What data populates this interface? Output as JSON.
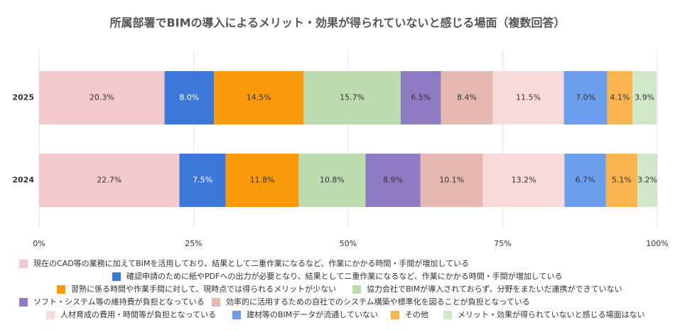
{
  "chart_data": {
    "type": "stacked-bar-horizontal",
    "title": "所属部署でBIMの導入によるメリット・効果が得られていないと感じる場面（複数回答）",
    "categories": [
      "2025",
      "2024"
    ],
    "xlim": [
      0,
      100
    ],
    "xticks": [
      {
        "value": 0,
        "label": "0%"
      },
      {
        "value": 25,
        "label": "25%"
      },
      {
        "value": 50,
        "label": "50%"
      },
      {
        "value": 75,
        "label": "75%"
      },
      {
        "value": 100,
        "label": "100%"
      }
    ],
    "grid": true,
    "series": [
      {
        "name": "現在のCAD等の業務に加えてBIMを活用しており、結果として二重作業になるなど、作業にかかる時間・手間が増加している",
        "color": "#f2c9cc",
        "values": [
          20.3,
          22.7
        ],
        "value_labels": [
          "20.3%",
          "22.7%"
        ]
      },
      {
        "name": "確認申請のために紙やPDFへの出力が必要となり、結果として二重作業になるなど、作業にかかる時間・手間が増加している",
        "color": "#3b78d8",
        "values": [
          8.0,
          7.5
        ],
        "value_labels": [
          "8.0%",
          "7.5%"
        ]
      },
      {
        "name": "習熟に係る時間や作業手間に対して、現時点では得られるメリットが少ない",
        "color": "#f89a0c",
        "values": [
          14.5,
          11.8
        ],
        "value_labels": [
          "14.5%",
          "11.8%"
        ]
      },
      {
        "name": "協力会社でBIMが導入されておらず、分野をまたいだ連携ができていない",
        "color": "#bcdcb0",
        "values": [
          15.7,
          10.8
        ],
        "value_labels": [
          "15.7%",
          "10.8%"
        ]
      },
      {
        "name": "ソフト・システム等の維持費が負担となっている",
        "color": "#8e7cc3",
        "values": [
          6.5,
          8.9
        ],
        "value_labels": [
          "6.5%",
          "8.9%"
        ]
      },
      {
        "name": "効率的に活用するための自社でのシステム構築や標準化を図ることが負担となっている",
        "color": "#e6b8b2",
        "values": [
          8.4,
          10.1
        ],
        "value_labels": [
          "8.4%",
          "10.1%"
        ]
      },
      {
        "name": "人材育成の費用・時間等が負担となっている",
        "color": "#f8dadb",
        "values": [
          11.5,
          13.2
        ],
        "value_labels": [
          "11.5%",
          "13.2%"
        ]
      },
      {
        "name": "建材等のBIMデータが流通していない",
        "color": "#6d9eeb",
        "values": [
          7.0,
          6.7
        ],
        "value_labels": [
          "7.0%",
          "6.7%"
        ]
      },
      {
        "name": "その他",
        "color": "#f9b550",
        "values": [
          4.1,
          5.1
        ],
        "value_labels": [
          "4.1%",
          "5.1%"
        ]
      },
      {
        "name": "メリット・効果が得られていないと感じる場面はない",
        "color": "#d2e6c8",
        "values": [
          3.9,
          3.2
        ],
        "value_labels": [
          "3.9%",
          "3.2%"
        ]
      }
    ]
  }
}
